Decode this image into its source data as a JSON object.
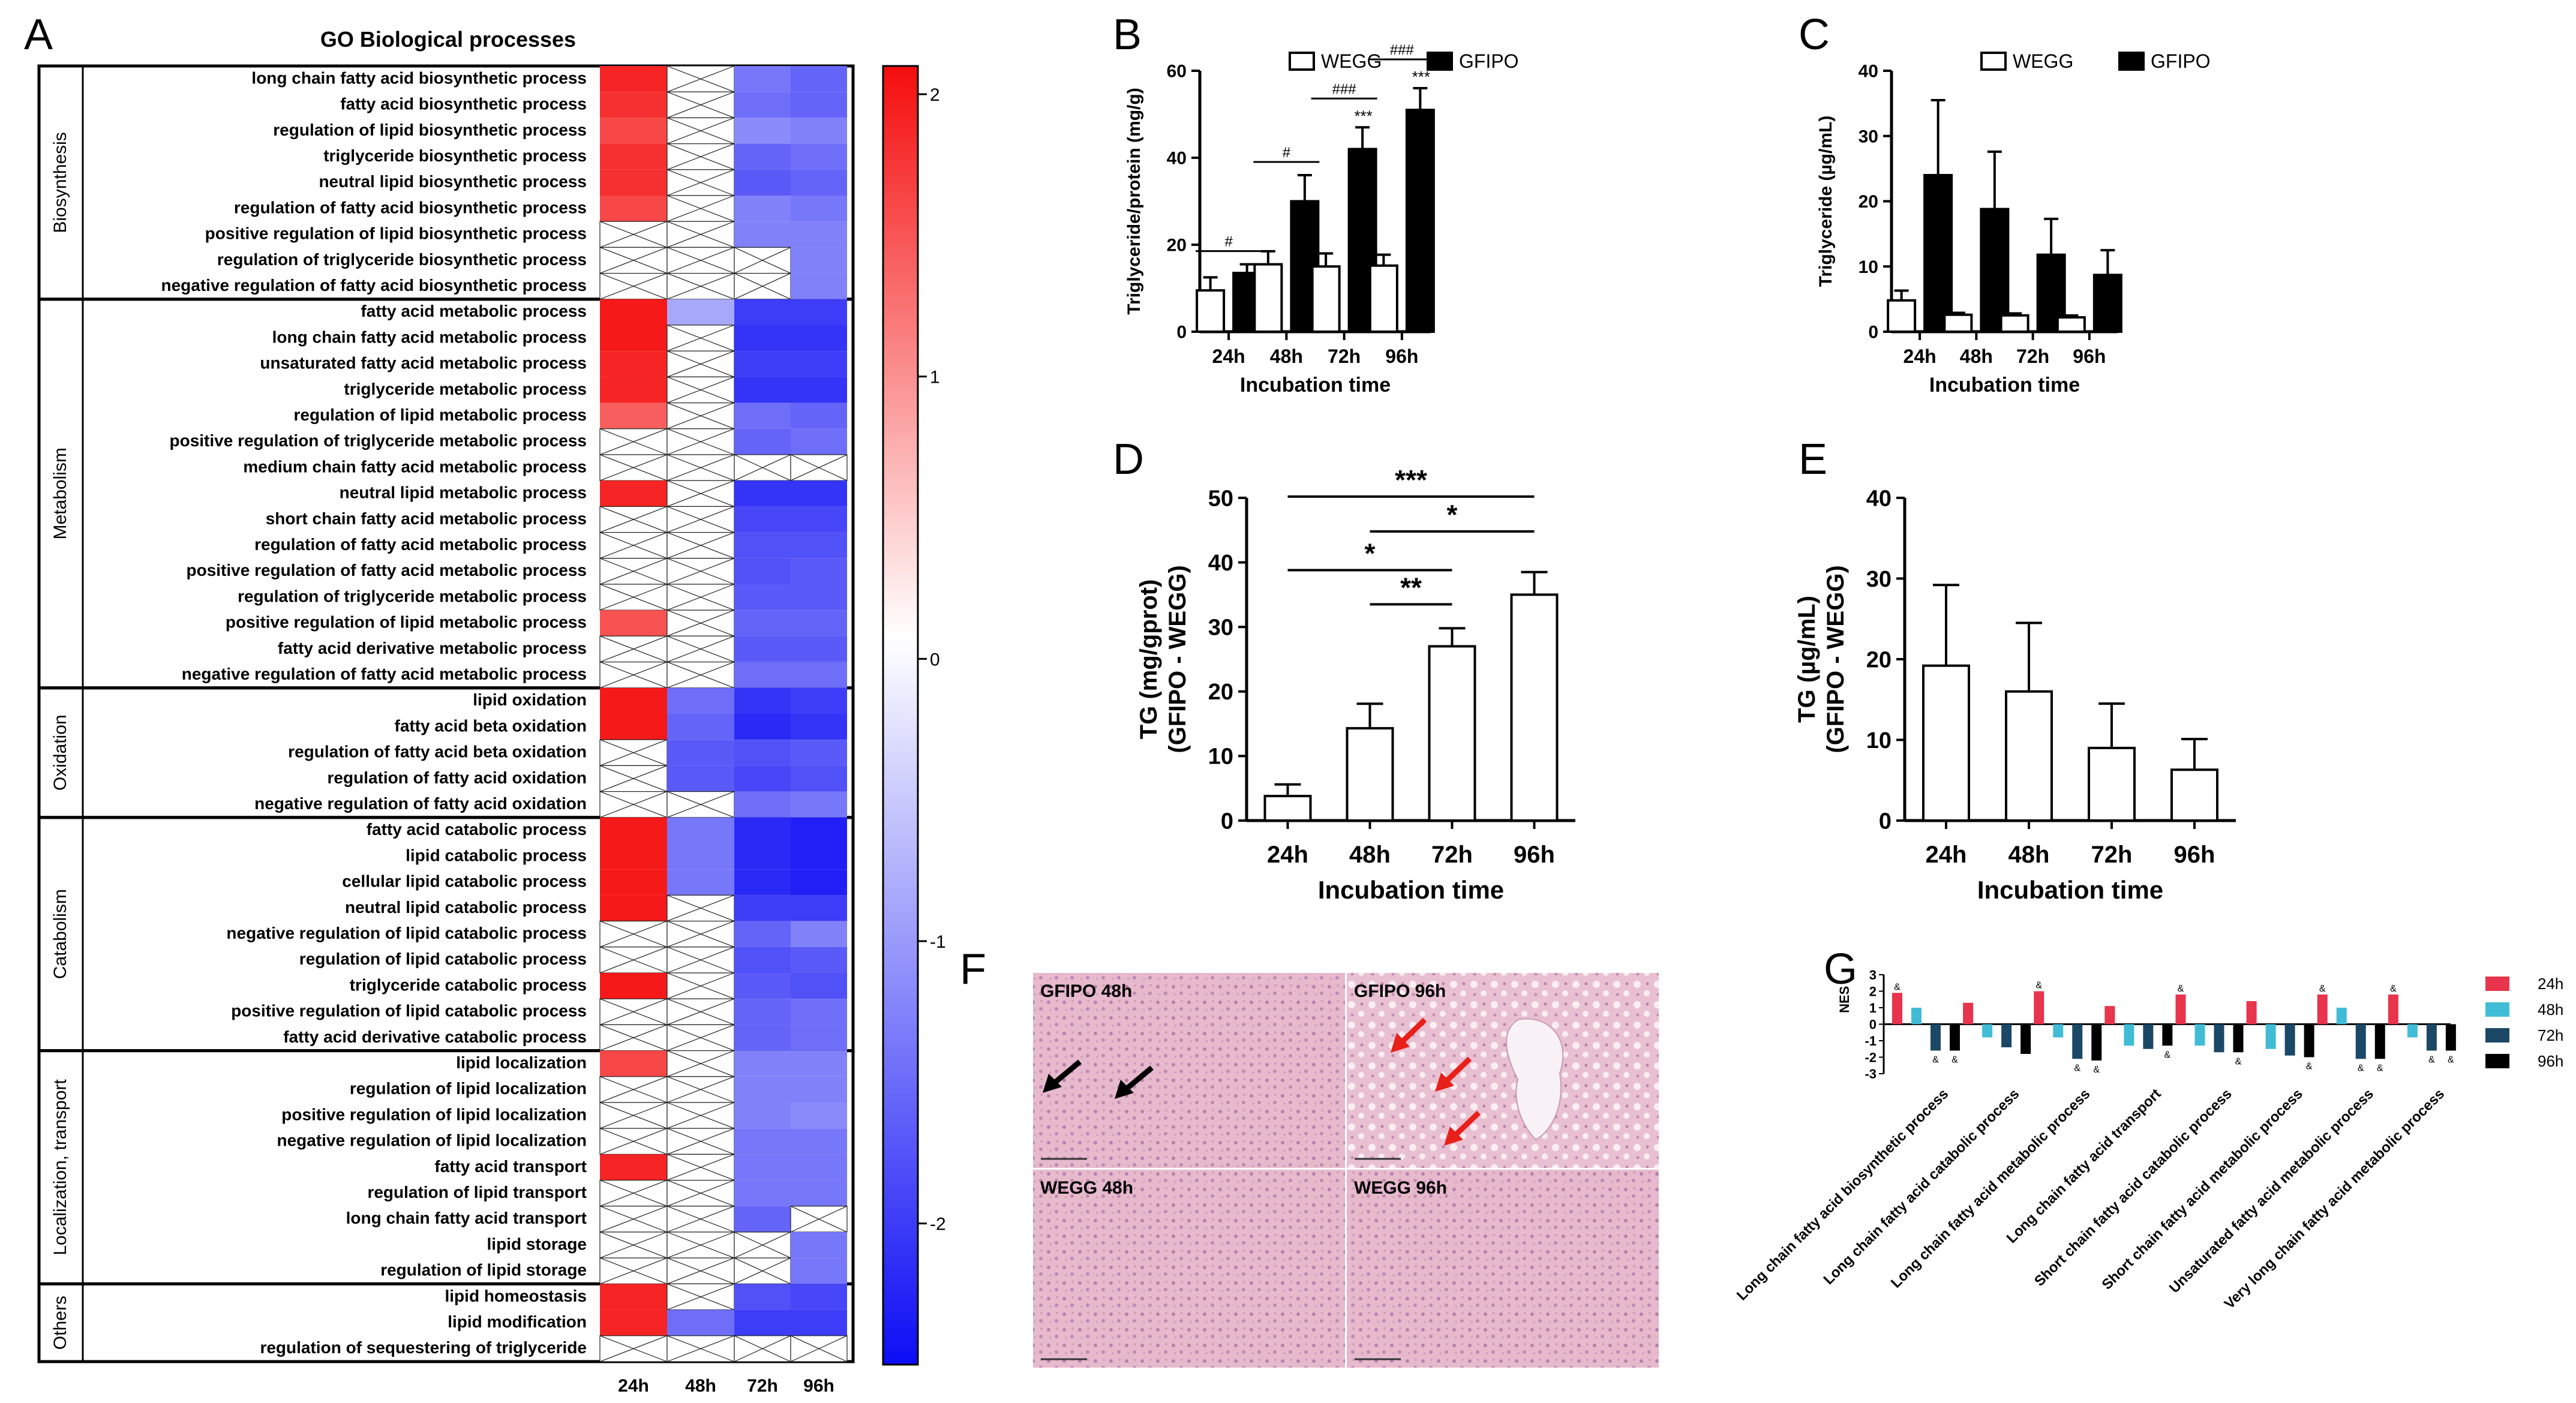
{
  "colors": {
    "red": "#f50d0d",
    "blue": "#0d0df5",
    "white": "#ffffff",
    "bar_white": "#ffffff",
    "bar_black": "#000000",
    "g24": "#e8344c",
    "g48": "#40bcd6",
    "g72": "#1b4866",
    "g96": "#000000"
  },
  "panel_labels": {
    "a": "A",
    "b": "B",
    "c": "C",
    "d": "D",
    "e": "E",
    "f": "F",
    "g": "G"
  },
  "chart_data": [
    {
      "id": "A",
      "type": "heatmap",
      "title": "GO Biological processes",
      "columns": [
        "24h",
        "48h",
        "72h",
        "96h"
      ],
      "colorbar": {
        "min": -2.5,
        "max": 2.1,
        "ticks": [
          2,
          1,
          0,
          -1,
          -2
        ]
      },
      "groups": [
        {
          "name": "Biosynthesis",
          "rows": [
            {
              "label": "long chain fatty acid biosynthetic process",
              "values": [
                1.9,
                null,
                -1.4,
                -1.6
              ]
            },
            {
              "label": "fatty acid biosynthetic process",
              "values": [
                1.8,
                null,
                -1.5,
                -1.6
              ]
            },
            {
              "label": "regulation of lipid biosynthetic process",
              "values": [
                1.6,
                null,
                -1.2,
                -1.3
              ]
            },
            {
              "label": "triglyceride biosynthetic process",
              "values": [
                1.8,
                null,
                -1.6,
                -1.5
              ]
            },
            {
              "label": "neutral lipid biosynthetic process",
              "values": [
                1.8,
                null,
                -1.7,
                -1.6
              ]
            },
            {
              "label": "regulation of fatty acid biosynthetic process",
              "values": [
                1.6,
                null,
                -1.3,
                -1.4
              ]
            },
            {
              "label": "positive regulation of lipid biosynthetic process",
              "values": [
                null,
                null,
                -1.3,
                -1.3
              ]
            },
            {
              "label": "regulation of triglyceride biosynthetic process",
              "values": [
                null,
                null,
                null,
                -1.3
              ]
            },
            {
              "label": "negative regulation of fatty acid biosynthetic process",
              "values": [
                null,
                null,
                null,
                -1.3
              ]
            }
          ]
        },
        {
          "name": "Metabolism",
          "rows": [
            {
              "label": "fatty acid metabolic process",
              "values": [
                2.0,
                -0.9,
                -2.0,
                -2.0
              ]
            },
            {
              "label": "long chain fatty acid metabolic process",
              "values": [
                2.0,
                null,
                -2.1,
                -2.1
              ]
            },
            {
              "label": "unsaturated fatty acid metabolic process",
              "values": [
                1.9,
                null,
                -2.0,
                -2.0
              ]
            },
            {
              "label": "triglyceride metabolic process",
              "values": [
                1.9,
                null,
                -2.1,
                -2.1
              ]
            },
            {
              "label": "regulation of lipid metabolic process",
              "values": [
                1.4,
                null,
                -1.5,
                -1.6
              ]
            },
            {
              "label": "positive regulation of triglyceride metabolic process",
              "values": [
                null,
                null,
                -1.6,
                -1.5
              ]
            },
            {
              "label": "medium chain fatty acid metabolic process",
              "values": [
                null,
                null,
                null,
                null
              ]
            },
            {
              "label": "neutral lipid metabolic process",
              "values": [
                1.9,
                null,
                -2.1,
                -2.1
              ]
            },
            {
              "label": "short chain fatty acid metabolic process",
              "values": [
                null,
                null,
                -1.9,
                -1.9
              ]
            },
            {
              "label": "regulation of fatty acid metabolic process",
              "values": [
                null,
                null,
                -1.8,
                -1.8
              ]
            },
            {
              "label": "positive regulation of fatty acid metabolic process",
              "values": [
                null,
                null,
                -1.8,
                -1.7
              ]
            },
            {
              "label": "regulation of triglyceride metabolic process",
              "values": [
                null,
                null,
                -1.7,
                -1.7
              ]
            },
            {
              "label": "positive regulation of lipid metabolic process",
              "values": [
                1.5,
                null,
                -1.6,
                -1.6
              ]
            },
            {
              "label": "fatty acid derivative metabolic process",
              "values": [
                null,
                null,
                -1.7,
                -1.7
              ]
            },
            {
              "label": "negative regulation of fatty acid metabolic process",
              "values": [
                null,
                null,
                -1.5,
                -1.5
              ]
            }
          ]
        },
        {
          "name": "Oxidation",
          "rows": [
            {
              "label": "lipid oxidation",
              "values": [
                2.0,
                -1.5,
                -2.1,
                -2.0
              ]
            },
            {
              "label": "fatty acid beta oxidation",
              "values": [
                2.0,
                -1.6,
                -2.2,
                -2.1
              ]
            },
            {
              "label": "regulation of fatty acid beta oxidation",
              "values": [
                null,
                -1.7,
                -1.8,
                -1.7
              ]
            },
            {
              "label": "regulation of fatty acid oxidation",
              "values": [
                null,
                -1.7,
                -1.9,
                -1.8
              ]
            },
            {
              "label": "negative regulation of fatty acid oxidation",
              "values": [
                null,
                null,
                -1.5,
                -1.4
              ]
            }
          ]
        },
        {
          "name": "Catabolism",
          "rows": [
            {
              "label": "fatty acid catabolic process",
              "values": [
                2.0,
                -1.4,
                -2.2,
                -2.3
              ]
            },
            {
              "label": "lipid catabolic process",
              "values": [
                2.0,
                -1.4,
                -2.2,
                -2.3
              ]
            },
            {
              "label": "cellular lipid catabolic process",
              "values": [
                2.0,
                -1.4,
                -2.2,
                -2.3
              ]
            },
            {
              "label": "neutral lipid catabolic process",
              "values": [
                2.0,
                null,
                -2.0,
                -2.0
              ]
            },
            {
              "label": "negative regulation of lipid catabolic process",
              "values": [
                null,
                null,
                -1.6,
                -1.3
              ]
            },
            {
              "label": "regulation of lipid catabolic process",
              "values": [
                null,
                null,
                -1.8,
                -1.7
              ]
            },
            {
              "label": "triglyceride catabolic process",
              "values": [
                2.0,
                null,
                -1.7,
                -1.8
              ]
            },
            {
              "label": "positive regulation of lipid catabolic process",
              "values": [
                null,
                null,
                -1.6,
                -1.5
              ]
            },
            {
              "label": "fatty acid derivative catabolic process",
              "values": [
                null,
                null,
                -1.6,
                -1.5
              ]
            }
          ]
        },
        {
          "name": "Localization, transport",
          "rows": [
            {
              "label": "lipid localization",
              "values": [
                1.6,
                null,
                -1.3,
                -1.3
              ]
            },
            {
              "label": "regulation of lipid localization",
              "values": [
                null,
                null,
                -1.3,
                -1.3
              ]
            },
            {
              "label": "positive regulation of lipid localization",
              "values": [
                null,
                null,
                -1.3,
                -1.2
              ]
            },
            {
              "label": "negative regulation of lipid localization",
              "values": [
                null,
                null,
                -1.4,
                -1.4
              ]
            },
            {
              "label": "fatty acid transport",
              "values": [
                1.9,
                null,
                -1.4,
                -1.4
              ]
            },
            {
              "label": "regulation of lipid transport",
              "values": [
                null,
                null,
                -1.4,
                -1.4
              ]
            },
            {
              "label": "long chain fatty acid transport",
              "values": [
                null,
                null,
                -1.6,
                null
              ]
            },
            {
              "label": "lipid storage",
              "values": [
                null,
                null,
                null,
                -1.4
              ]
            },
            {
              "label": "regulation of lipid storage",
              "values": [
                null,
                null,
                null,
                -1.4
              ]
            }
          ]
        },
        {
          "name": "Others",
          "rows": [
            {
              "label": "lipid homeostasis",
              "values": [
                1.9,
                null,
                -1.8,
                -1.9
              ]
            },
            {
              "label": "lipid modification",
              "values": [
                1.9,
                -1.5,
                -2.0,
                -2.0
              ]
            },
            {
              "label": "regulation of sequestering of triglyceride",
              "values": [
                null,
                null,
                null,
                null
              ]
            }
          ]
        }
      ]
    },
    {
      "id": "B",
      "type": "bar",
      "categories": [
        "24h",
        "48h",
        "72h",
        "96h"
      ],
      "series": [
        {
          "name": "WEGG",
          "values": [
            9.5,
            15.5,
            15,
            15.2
          ],
          "errors": [
            3,
            3,
            3,
            2.5
          ]
        },
        {
          "name": "GFIPO",
          "values": [
            13.5,
            30,
            42,
            51
          ],
          "errors": [
            2,
            6,
            5,
            5
          ]
        }
      ],
      "annotations": {
        "hash": [
          "#",
          "#",
          "###",
          "###"
        ],
        "stars": [
          "",
          "",
          "***",
          "***"
        ]
      },
      "xlabel": "Incubation time",
      "ylabel": "Triglyceride/protein (mg/g)",
      "ylim": [
        0,
        60
      ],
      "yticks": [
        0,
        20,
        40,
        60
      ]
    },
    {
      "id": "C",
      "type": "bar",
      "categories": [
        "24h",
        "48h",
        "72h",
        "96h"
      ],
      "series": [
        {
          "name": "WEGG",
          "values": [
            4.8,
            2.6,
            2.5,
            2.2
          ],
          "errors": [
            1.5,
            0.3,
            0.3,
            0.3
          ]
        },
        {
          "name": "GFIPO",
          "values": [
            24,
            18.8,
            11.8,
            8.7
          ],
          "errors": [
            11.5,
            8.8,
            5.5,
            3.8
          ]
        }
      ],
      "xlabel": "Incubation time",
      "ylabel": "Triglyceride (µg/mL)",
      "ylim": [
        0,
        40
      ],
      "yticks": [
        0,
        10,
        20,
        30,
        40
      ]
    },
    {
      "id": "D",
      "type": "bar",
      "categories": [
        "24h",
        "48h",
        "72h",
        "96h"
      ],
      "values": [
        3.8,
        14.3,
        27,
        35
      ],
      "errors": [
        1.8,
        3.8,
        2.8,
        3.5
      ],
      "ylabel_line1": "TG (mg/gprot)",
      "ylabel_line2": "(GFIPO - WEGG)",
      "xlabel": "Incubation time",
      "ylim": [
        0,
        50
      ],
      "yticks": [
        0,
        10,
        20,
        30,
        40,
        50
      ],
      "comparisons": [
        {
          "from": 0,
          "to": 3,
          "label": "***"
        },
        {
          "from": 1,
          "to": 3,
          "label": "*"
        },
        {
          "from": 0,
          "to": 2,
          "label": "*"
        },
        {
          "from": 1,
          "to": 2,
          "label": "**"
        }
      ]
    },
    {
      "id": "E",
      "type": "bar",
      "categories": [
        "24h",
        "48h",
        "72h",
        "96h"
      ],
      "values": [
        19.2,
        16,
        9,
        6.3
      ],
      "errors": [
        10,
        8.5,
        5.5,
        3.8
      ],
      "ylabel_line1": "TG (µg/mL)",
      "ylabel_line2": "(GFIPO - WEGG)",
      "xlabel": "Incubation time",
      "ylim": [
        0,
        40
      ],
      "yticks": [
        0,
        10,
        20,
        30,
        40
      ]
    },
    {
      "id": "G",
      "type": "bar",
      "categories": [
        "Long chain fatty acid biosynthetic process",
        "Long chain fatty acid catabolic process",
        "Long chain fatty acid metabolic process",
        "Long chain fatty acid transport",
        "Short chain fatty acid catabolic process",
        "Short chain fatty acid metabolic process",
        "Unsaturated fatty acid metabolic process",
        "Very long chain fatty acid metabolic process"
      ],
      "series": [
        {
          "name": "24h",
          "values": [
            1.9,
            1.3,
            2.0,
            1.1,
            1.8,
            1.4,
            1.8,
            1.8
          ]
        },
        {
          "name": "48h",
          "values": [
            1.0,
            -0.8,
            -0.8,
            -1.3,
            -1.3,
            -1.5,
            1.0,
            -0.8
          ]
        },
        {
          "name": "72h",
          "values": [
            -1.6,
            -1.4,
            -2.1,
            -1.5,
            -1.7,
            -1.9,
            -2.1,
            -1.6
          ]
        },
        {
          "name": "96h",
          "values": [
            -1.6,
            -1.8,
            -2.2,
            -1.3,
            -1.7,
            -2.0,
            -2.1,
            -1.6
          ]
        }
      ],
      "amp": [
        [
          "24h",
          "72h",
          "96h"
        ],
        [],
        [
          "24h",
          "72h",
          "96h"
        ],
        [
          "96h"
        ],
        [
          "24h",
          "96h"
        ],
        [
          "96h"
        ],
        [
          "24h",
          "72h",
          "96h"
        ],
        [
          "24h",
          "72h",
          "96h"
        ]
      ],
      "amp_symbol": "&",
      "ylabel": "NES",
      "ylim": [
        -3,
        3
      ],
      "yticks": [
        3,
        2,
        1,
        0,
        -1,
        -2,
        -3
      ]
    }
  ],
  "panel_f": {
    "labels": [
      "GFIPO 48h",
      "GFIPO 96h",
      "WEGG 48h",
      "WEGG 96h"
    ]
  }
}
